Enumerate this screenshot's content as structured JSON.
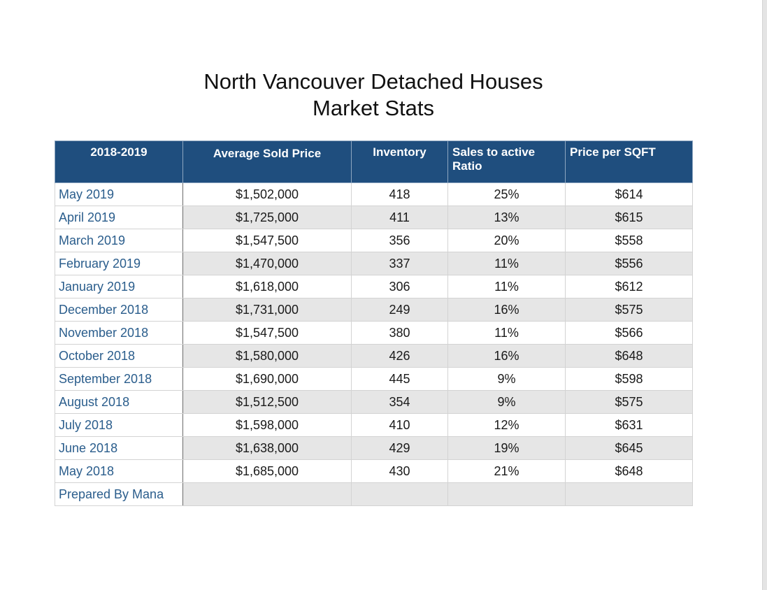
{
  "title": {
    "line1": "North Vancouver Detached Houses",
    "line2": "Market Stats"
  },
  "table": {
    "headers": [
      "2018-2019",
      "Average Sold Price",
      "Inventory",
      "Sales to active Ratio",
      "Price per SQFT"
    ],
    "rows": [
      [
        "May 2019",
        "$1,502,000",
        "418",
        "25%",
        "$614"
      ],
      [
        "April 2019",
        "$1,725,000",
        "411",
        "13%",
        "$615"
      ],
      [
        "March 2019",
        "$1,547,500",
        "356",
        "20%",
        "$558"
      ],
      [
        "February 2019",
        "$1,470,000",
        "337",
        "11%",
        "$556"
      ],
      [
        "January 2019",
        "$1,618,000",
        "306",
        "11%",
        "$612"
      ],
      [
        "December 2018",
        "$1,731,000",
        "249",
        "16%",
        "$575"
      ],
      [
        "November 2018",
        "$1,547,500",
        "380",
        "11%",
        "$566"
      ],
      [
        "October 2018",
        "$1,580,000",
        "426",
        "16%",
        "$648"
      ],
      [
        "September 2018",
        "$1,690,000",
        "445",
        "9%",
        "$598"
      ],
      [
        "August 2018",
        "$1,512,500",
        "354",
        "9%",
        "$575"
      ],
      [
        "July 2018",
        "$1,598,000",
        "410",
        "12%",
        "$631"
      ],
      [
        "June 2018",
        "$1,638,000",
        "429",
        "19%",
        "$645"
      ],
      [
        "May 2018",
        "$1,685,000",
        "430",
        "21%",
        "$648"
      ]
    ],
    "footer": "Prepared By Mana"
  },
  "colors": {
    "header_bg": "#1f4e7e",
    "month_text": "#2a5d8c",
    "shade_row": "#e6e6e6"
  }
}
